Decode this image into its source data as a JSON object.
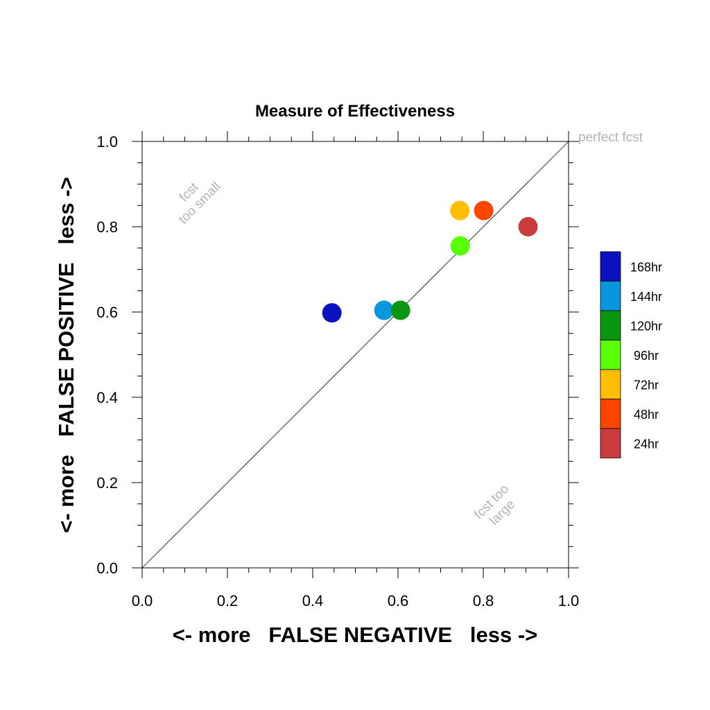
{
  "chart_data": {
    "type": "scatter",
    "title": "Measure of Effectiveness",
    "xlabel": "<- more   FALSE NEGATIVE   less ->",
    "ylabel": "<- more   FALSE POSITIVE   less ->",
    "xlim": [
      0,
      1
    ],
    "ylim": [
      0,
      1
    ],
    "xticks": [
      "0.0",
      "0.2",
      "0.4",
      "0.6",
      "0.8",
      "1.0"
    ],
    "yticks": [
      "0.0",
      "0.2",
      "0.4",
      "0.6",
      "0.8",
      "1.0"
    ],
    "grid": false,
    "diagonal_line": true,
    "annotations": {
      "perfect": "perfect fcst",
      "small_1": "fcst",
      "small_2": "too small",
      "large_1": "fcst too",
      "large_2": "large"
    },
    "legend_position": "right",
    "series": [
      {
        "name": "168hr",
        "color": "#0a12c0",
        "x": 0.445,
        "y": 0.598
      },
      {
        "name": "144hr",
        "color": "#0a96dc",
        "x": 0.567,
        "y": 0.604
      },
      {
        "name": "120hr",
        "color": "#0a9612",
        "x": 0.606,
        "y": 0.604
      },
      {
        "name": "96hr",
        "color": "#5aff0a",
        "x": 0.746,
        "y": 0.755
      },
      {
        "name": "72hr",
        "color": "#ffbe00",
        "x": 0.745,
        "y": 0.838
      },
      {
        "name": "48hr",
        "color": "#ff4600",
        "x": 0.801,
        "y": 0.838
      },
      {
        "name": "24hr",
        "color": "#c83c3c",
        "x": 0.905,
        "y": 0.8
      }
    ]
  }
}
